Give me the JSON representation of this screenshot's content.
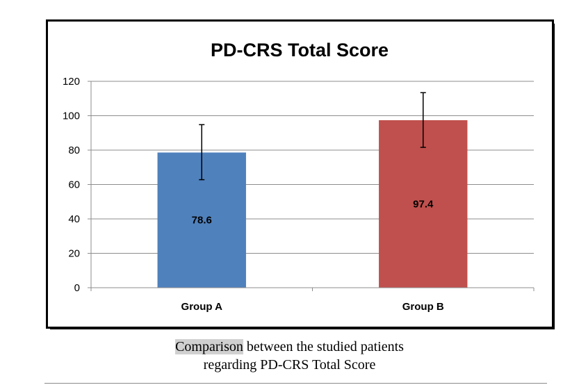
{
  "chart_data": {
    "type": "bar",
    "title": "PD-CRS Total Score",
    "categories": [
      "Group A",
      "Group B"
    ],
    "values": [
      78.6,
      97.4
    ],
    "error_bars": [
      {
        "low": 62.8,
        "high": 94.8
      },
      {
        "low": 81.6,
        "high": 113.4
      }
    ],
    "data_labels": [
      "78.6",
      "97.4"
    ],
    "bar_colors": [
      "#4f81bd",
      "#c0504d"
    ],
    "ylim": [
      0,
      120
    ],
    "yticks": [
      0,
      20,
      40,
      60,
      80,
      100,
      120
    ],
    "ytick_labels": [
      "0",
      "20",
      "40",
      "60",
      "80",
      "100",
      "120"
    ],
    "grid": true,
    "legend": "none"
  },
  "caption": {
    "highlighted_word": "Comparison",
    "line1_rest": " between the studied patients",
    "line2": "regarding PD-CRS Total Score"
  }
}
